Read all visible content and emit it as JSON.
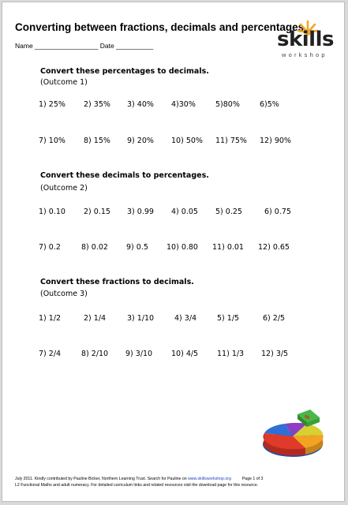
{
  "header": {
    "title": "Converting between fractions, decimals and percentages",
    "name_date_line": "Name _________________  Date __________"
  },
  "logo": {
    "word": "skills",
    "sub": "workshop"
  },
  "sections": [
    {
      "heading": "Convert these percentages to decimals.",
      "outcome": "(Outcome 1)",
      "rows": [
        [
          "1) 25%",
          "2) 35%",
          "3) 40%",
          "4)30%",
          "5)80%",
          "6)5%"
        ],
        [
          "7) 10%",
          "8) 15%",
          "9) 20%",
          "10) 50%",
          "11) 75%",
          "12) 90%"
        ]
      ]
    },
    {
      "heading": "Convert these decimals to percentages.",
      "outcome": "(Outcome 2)",
      "rows": [
        [
          "1) 0.10",
          "2) 0.15",
          "3) 0.99",
          "4) 0.05",
          "5) 0.25",
          "6) 0.75"
        ],
        [
          "7) 0.2",
          "8) 0.02",
          "9) 0.5",
          "10) 0.80",
          "11) 0.01",
          "12) 0.65"
        ]
      ]
    },
    {
      "heading": "Convert these fractions to decimals.",
      "outcome": "(Outcome 3)",
      "rows": [
        [
          "1) 1/2",
          "2) 1/4",
          "3) 1/10",
          "4) 3/4",
          "5) 1/5",
          "6) 2/5"
        ],
        [
          "7) 2/4",
          "8) 2/10",
          "9) 3/10",
          "10) 4/5",
          "11) 1/3",
          "12) 3/5"
        ]
      ]
    }
  ],
  "footer": {
    "line1_a": "July 2011. Kindly contributed by Pauline Bicker, Northern Learning Trust. Search for Pauline on ",
    "line1_link": "www.skillsworkshop.org",
    "line1_page": "Page 1 of 3",
    "line2": "L2 Functional Maths and adult numeracy. For detailed curriculum links and related resources visit the download page for this resource."
  },
  "colors": {
    "logo_sun": "#f5a623",
    "pie": [
      "#2f6fd6",
      "#e03a2a",
      "#f2a320",
      "#8a3fc2",
      "#48b848",
      "#d8d030"
    ]
  }
}
